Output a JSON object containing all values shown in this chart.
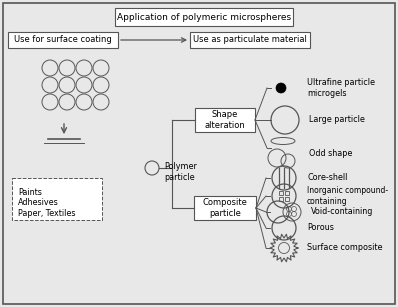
{
  "title": "Application of polymeric microspheres",
  "bg_color": "#e8e8e8",
  "box_color": "#ffffff",
  "text_color": "#000000",
  "left_branch": "Use for surface coating",
  "right_branch": "Use as particulate material",
  "polymer_particle": "Polymer\nparticle",
  "shape_alteration": "Shape\nalteration",
  "composite_particle": "Composite\nparticle",
  "shape_items": [
    "Ultrafine particle\nmicrogels",
    "Large particle",
    "Odd shape"
  ],
  "composite_items": [
    "Core-shell",
    "Inorganic compound-\ncontaining",
    "Void-containing",
    "Porous",
    "Surface composite"
  ],
  "left_box_items": "Paints\nAdhesives\nPaper, Textiles",
  "line_color": "#555555",
  "border_color": "#666666"
}
